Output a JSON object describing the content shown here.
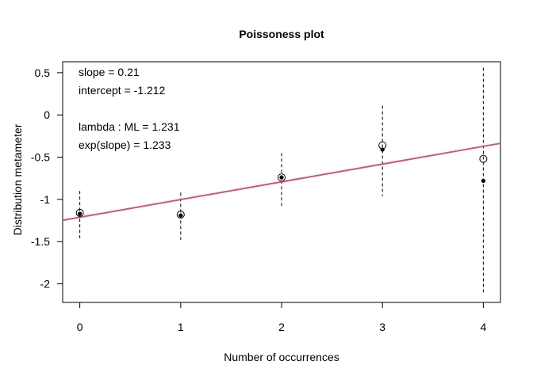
{
  "chart_data": {
    "type": "scatter",
    "title": "Poissoness plot",
    "xlabel": "Number of occurrences",
    "ylabel": "Distribution metameter",
    "xlim": [
      -0.17,
      4.17
    ],
    "ylim": [
      -2.22,
      0.63
    ],
    "x_ticks": [
      0,
      1,
      2,
      3,
      4
    ],
    "y_ticks": [
      0.5,
      0,
      -0.5,
      -1,
      -1.5,
      -2
    ],
    "y_tick_labels": [
      "0.5",
      "0",
      "-0.5",
      "-1",
      "-1.5",
      "-2"
    ],
    "grid": false,
    "x": [
      0,
      1,
      2,
      3,
      4
    ],
    "open_points": [
      -1.16,
      -1.18,
      -0.74,
      -0.36,
      -0.52
    ],
    "filled_points": [
      -1.17,
      -1.19,
      -0.74,
      -0.41,
      -0.78
    ],
    "ci_lower": [
      -1.46,
      -1.48,
      -1.1,
      -0.96,
      -2.1
    ],
    "ci_upper": [
      -0.9,
      -0.92,
      -0.45,
      0.11,
      0.56
    ],
    "fit_line": {
      "slope": 0.21,
      "intercept": -1.212,
      "color": "#d1566f"
    },
    "annotations": [
      "slope = 0.21",
      "intercept = -1.212",
      "",
      "lambda : ML = 1.231",
      "exp(slope) = 1.233"
    ]
  }
}
